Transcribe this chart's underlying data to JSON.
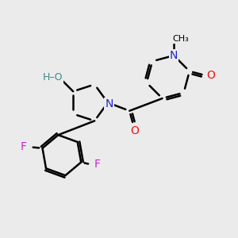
{
  "background_color": "#ebebeb",
  "bond_color": "#000000",
  "bond_width": 1.8,
  "atom_colors": {
    "C": "#000000",
    "N": "#2222cc",
    "O": "#ee1111",
    "F": "#cc22cc",
    "HO": "#3a8a8a"
  },
  "figsize": [
    3.0,
    3.0
  ],
  "dpi": 100
}
